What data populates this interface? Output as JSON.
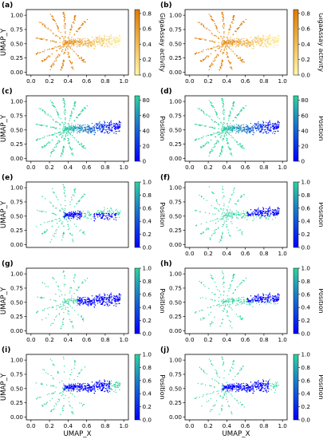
{
  "figure": {
    "xlabel": "UMAP_X",
    "ylabel": "UMAP_Y"
  },
  "colors": {
    "activity_low": "#fff7a6",
    "activity_high": "#e07a00",
    "position_low": "#0000ff",
    "position_high": "#2ed39e",
    "axis": "#000000"
  },
  "chart_data": [
    {
      "panel": "(a)",
      "type": "scatter",
      "color_mode": "activity",
      "colorbar_label": "GigaAssay activity",
      "colorbar_ticks": [
        "0.0",
        "0.2",
        "0.4",
        "0.6",
        "0.8"
      ],
      "colorbar_range": [
        0,
        0.85
      ],
      "highlight": "all",
      "xlim": [
        -0.05,
        1.05
      ],
      "ylim": [
        -0.05,
        1.1
      ],
      "xticks": [
        "0.0",
        "0.2",
        "0.4",
        "0.6",
        "0.8",
        "1.0"
      ],
      "yticks": [
        "0.00",
        "0.25",
        "0.50",
        "0.75",
        "1.00"
      ],
      "show_xticks": true,
      "show_ylabel": true,
      "show_xlabel": false
    },
    {
      "panel": "(b)",
      "type": "scatter",
      "color_mode": "activity",
      "colorbar_label": "GigaAssay activity",
      "colorbar_ticks": [
        "0.0",
        "0.2",
        "0.4",
        "0.6",
        "0.8"
      ],
      "colorbar_range": [
        0,
        0.85
      ],
      "highlight": "all",
      "xlim": [
        -0.05,
        1.05
      ],
      "ylim": [
        -0.05,
        1.1
      ],
      "xticks": [
        "0.0",
        "0.2",
        "0.4",
        "0.6",
        "0.8",
        "1.0"
      ],
      "yticks": [
        "0.00",
        "0.25",
        "0.50",
        "0.75",
        "1.00"
      ],
      "show_xticks": true,
      "show_ylabel": false,
      "show_xlabel": false
    },
    {
      "panel": "(c)",
      "type": "scatter",
      "color_mode": "position",
      "colorbar_label": "Position",
      "colorbar_ticks": [
        "0",
        "20",
        "40",
        "60",
        "80"
      ],
      "colorbar_range": [
        0,
        86
      ],
      "highlight": "all",
      "xlim": [
        -0.05,
        1.05
      ],
      "ylim": [
        -0.05,
        1.1
      ],
      "xticks": [
        "0.0",
        "0.2",
        "0.4",
        "0.6",
        "0.8",
        "1.0"
      ],
      "yticks": [
        "0.00",
        "0.25",
        "0.50",
        "0.75",
        "1.00"
      ],
      "show_xticks": true,
      "show_ylabel": true,
      "show_xlabel": false
    },
    {
      "panel": "(d)",
      "type": "scatter",
      "color_mode": "position",
      "colorbar_label": "Position",
      "colorbar_ticks": [
        "0",
        "20",
        "40",
        "60",
        "80"
      ],
      "colorbar_range": [
        0,
        86
      ],
      "highlight": "all",
      "xlim": [
        -0.05,
        1.05
      ],
      "ylim": [
        -0.05,
        1.1
      ],
      "xticks": [
        "0.0",
        "0.2",
        "0.4",
        "0.6",
        "0.8",
        "1.0"
      ],
      "yticks": [
        "0.00",
        "0.25",
        "0.50",
        "0.75",
        "1.00"
      ],
      "show_xticks": true,
      "show_ylabel": false,
      "show_xlabel": false
    },
    {
      "panel": "(e)",
      "type": "scatter",
      "color_mode": "position",
      "colorbar_label": "Position",
      "colorbar_ticks": [
        "0.0",
        "0.2",
        "0.4",
        "0.6",
        "0.8",
        "1.0"
      ],
      "colorbar_range": [
        0,
        1
      ],
      "highlight": "center_right",
      "xlim": [
        -0.05,
        1.05
      ],
      "ylim": [
        -0.05,
        1.1
      ],
      "xticks": [
        "0.0",
        "0.2",
        "0.4",
        "0.6",
        "0.8",
        "1.0"
      ],
      "yticks": [
        "0.00",
        "0.25",
        "0.50",
        "0.75",
        "1.00"
      ],
      "show_xticks": false,
      "show_ylabel": true,
      "show_xlabel": false
    },
    {
      "panel": "(f)",
      "type": "scatter",
      "color_mode": "position",
      "colorbar_label": "Position",
      "colorbar_ticks": [
        "0.0",
        "0.2",
        "0.4",
        "0.6",
        "0.8",
        "1.0"
      ],
      "colorbar_range": [
        0,
        1
      ],
      "highlight": "upper_right",
      "xlim": [
        -0.05,
        1.05
      ],
      "ylim": [
        -0.05,
        1.1
      ],
      "xticks": [
        "0.0",
        "0.2",
        "0.4",
        "0.6",
        "0.8",
        "1.0"
      ],
      "yticks": [
        "0.00",
        "0.25",
        "0.50",
        "0.75",
        "1.00"
      ],
      "show_xticks": true,
      "show_ylabel": false,
      "show_xlabel": false
    },
    {
      "panel": "(g)",
      "type": "scatter",
      "color_mode": "position",
      "colorbar_label": "Position",
      "colorbar_ticks": [
        "0.0",
        "0.2",
        "0.4",
        "0.6",
        "0.8",
        "1.0"
      ],
      "colorbar_range": [
        0,
        1
      ],
      "highlight": "mid_right",
      "xlim": [
        -0.05,
        1.05
      ],
      "ylim": [
        -0.05,
        1.1
      ],
      "xticks": [
        "0.0",
        "0.2",
        "0.4",
        "0.6",
        "0.8",
        "1.0"
      ],
      "yticks": [
        "0.00",
        "0.25",
        "0.50",
        "0.75",
        "1.00"
      ],
      "show_xticks": true,
      "show_ylabel": true,
      "show_xlabel": false
    },
    {
      "panel": "(h)",
      "type": "scatter",
      "color_mode": "position",
      "colorbar_label": "Position",
      "colorbar_ticks": [
        "0.0",
        "0.2",
        "0.4",
        "0.6",
        "0.8",
        "1.0"
      ],
      "colorbar_range": [
        0,
        1
      ],
      "highlight": "upper_right",
      "xlim": [
        -0.05,
        1.05
      ],
      "ylim": [
        -0.05,
        1.1
      ],
      "xticks": [
        "0.0",
        "0.2",
        "0.4",
        "0.6",
        "0.8",
        "1.0"
      ],
      "yticks": [
        "0.00",
        "0.25",
        "0.50",
        "0.75",
        "1.00"
      ],
      "show_xticks": true,
      "show_ylabel": false,
      "show_xlabel": false
    },
    {
      "panel": "(i)",
      "type": "scatter",
      "color_mode": "position",
      "colorbar_label": "Position",
      "colorbar_ticks": [
        "0.0",
        "0.2",
        "0.4",
        "0.6",
        "0.8",
        "1.0"
      ],
      "colorbar_range": [
        0,
        1
      ],
      "highlight": "center",
      "xlim": [
        -0.05,
        1.05
      ],
      "ylim": [
        -0.05,
        1.1
      ],
      "xticks": [
        "0.0",
        "0.2",
        "0.4",
        "0.6",
        "0.8",
        "1.0"
      ],
      "yticks": [
        "0.00",
        "0.25",
        "0.50",
        "0.75",
        "1.00"
      ],
      "show_xticks": true,
      "show_ylabel": true,
      "show_xlabel": true
    },
    {
      "panel": "(j)",
      "type": "scatter",
      "color_mode": "position",
      "colorbar_label": "Position",
      "colorbar_ticks": [
        "0.0",
        "0.2",
        "0.4",
        "0.6",
        "0.8",
        "1.0"
      ],
      "colorbar_range": [
        0,
        1
      ],
      "highlight": "center",
      "xlim": [
        -0.05,
        1.05
      ],
      "ylim": [
        -0.05,
        1.1
      ],
      "xticks": [
        "0.0",
        "0.2",
        "0.4",
        "0.6",
        "0.8",
        "1.0"
      ],
      "yticks": [
        "0.00",
        "0.25",
        "0.50",
        "0.75",
        "1.00"
      ],
      "show_xticks": true,
      "show_ylabel": false,
      "show_xlabel": true
    }
  ]
}
